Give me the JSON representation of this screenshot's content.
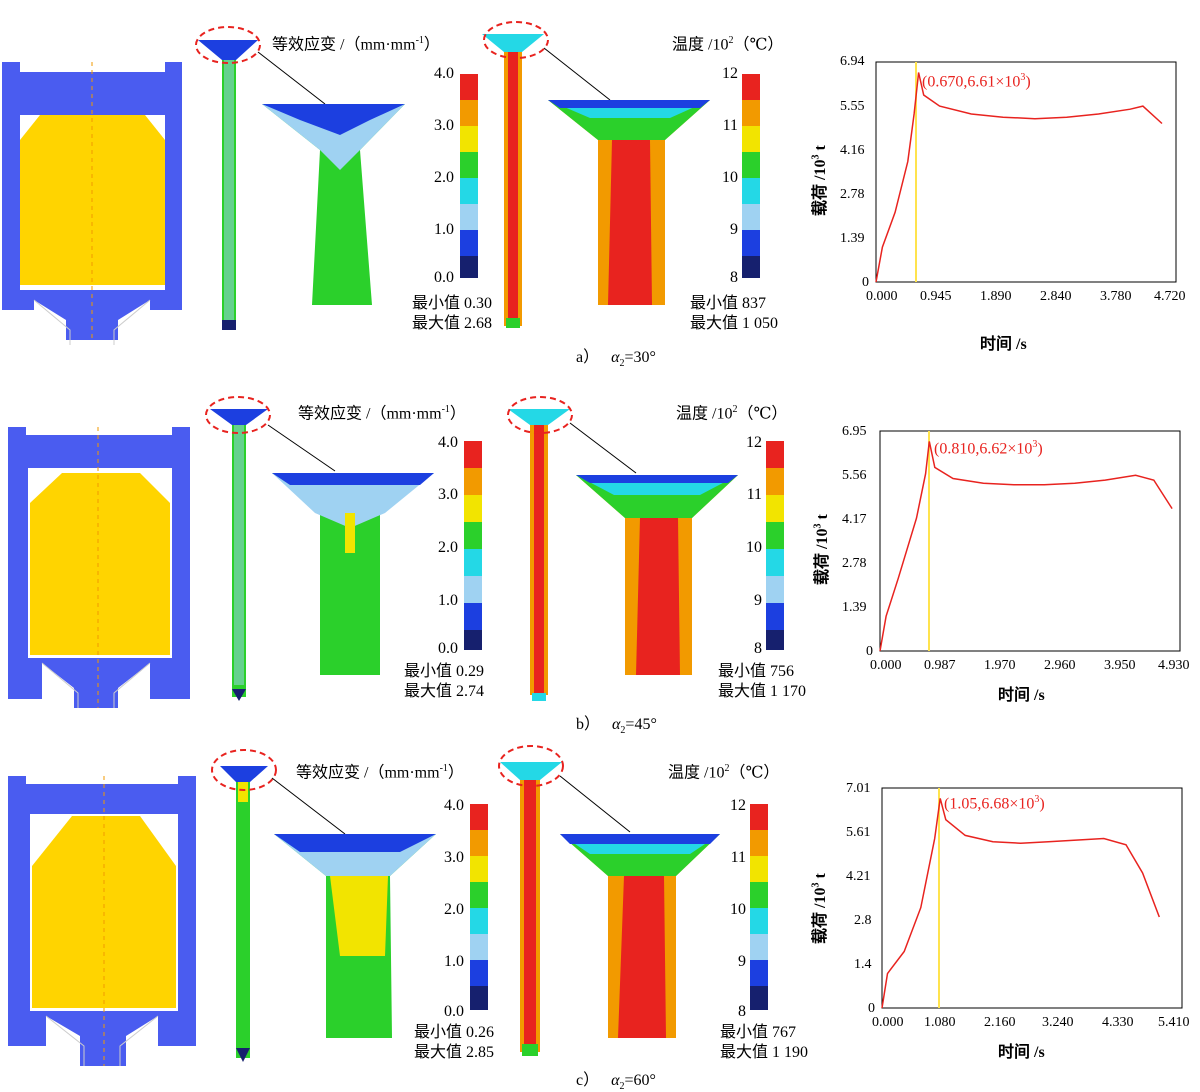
{
  "colors": {
    "die_blue": "#4a5cf0",
    "billet_yellow": "#ffd400",
    "strain_scale": [
      "#16206e",
      "#1c3fe0",
      "#9fd2f2",
      "#24d8e6",
      "#2bd02b",
      "#f2e400",
      "#f29a00",
      "#e8231f"
    ],
    "temp_scale": [
      "#16206e",
      "#1c3fe0",
      "#9fd2f2",
      "#24d8e6",
      "#2bd02b",
      "#f2e400",
      "#f29a00",
      "#e8231f"
    ],
    "curve_red": "#e8231f",
    "marker_yellow": "#ffe34d"
  },
  "labels": {
    "strain_title": "等效应变 /（mm·mm",
    "strain_title_sup": "-1",
    "strain_title_end": "）",
    "temp_title": "温度 /10",
    "temp_title_sup": "2",
    "temp_title_end": "（℃）",
    "ylabel": "载荷 /10",
    "ylabel_sup": "3",
    "ylabel_end": " t",
    "xlabel": "时间 /s",
    "min_prefix": "最小值",
    "max_prefix": "最大值"
  },
  "strain_ticks": [
    "4.0",
    "3.0",
    "2.0",
    "1.0",
    "0.0"
  ],
  "temp_ticks": [
    "12",
    "11",
    "10",
    "9",
    "8"
  ],
  "panels": [
    {
      "caption_prefix": "a）",
      "caption_alpha": "α",
      "caption_sub": "2",
      "caption_value": "=30°",
      "strain_min": "0.30",
      "strain_max": "2.68",
      "temp_min": "837",
      "temp_max": "1 050",
      "peak_label": "(0.670,6.61×10",
      "peak_sup": "3",
      "peak_end": ")",
      "yticks": [
        "6.94",
        "5.55",
        "4.16",
        "2.78",
        "1.39",
        "0"
      ],
      "xticks": [
        "0.000",
        "0.945",
        "1.890",
        "2.840",
        "3.780",
        "4.720"
      ]
    },
    {
      "caption_prefix": "b）",
      "caption_alpha": "α",
      "caption_sub": "2",
      "caption_value": "=45°",
      "strain_min": "0.29",
      "strain_max": "2.74",
      "temp_min": "756",
      "temp_max": "1 170",
      "peak_label": "(0.810,6.62×10",
      "peak_sup": "3",
      "peak_end": ")",
      "yticks": [
        "6.95",
        "5.56",
        "4.17",
        "2.78",
        "1.39",
        "0"
      ],
      "xticks": [
        "0.000",
        "0.987",
        "1.970",
        "2.960",
        "3.950",
        "4.930"
      ]
    },
    {
      "caption_prefix": "c）",
      "caption_alpha": "α",
      "caption_sub": "2",
      "caption_value": "=60°",
      "strain_min": "0.26",
      "strain_max": "2.85",
      "temp_min": "767",
      "temp_max": "1 190",
      "peak_label": "(1.05,6.68×10",
      "peak_sup": "3",
      "peak_end": ")",
      "yticks": [
        "7.01",
        "5.61",
        "4.21",
        "2.8",
        "1.4",
        "0"
      ],
      "xticks": [
        "0.000",
        "1.080",
        "2.160",
        "3.240",
        "4.330",
        "5.410"
      ]
    }
  ],
  "chart_data": [
    {
      "type": "line",
      "xlabel": "时间 /s",
      "ylabel": "载荷 /10³ t",
      "peak": [
        0.67,
        6.61
      ],
      "xlim": [
        0,
        4.72
      ],
      "ylim": [
        0,
        6.94
      ],
      "x": [
        0,
        0.1,
        0.3,
        0.5,
        0.6,
        0.67,
        0.75,
        1.0,
        1.5,
        2.0,
        2.5,
        3.0,
        3.5,
        4.0,
        4.2,
        4.5
      ],
      "y": [
        0,
        1.1,
        2.2,
        3.8,
        5.3,
        6.61,
        5.9,
        5.55,
        5.3,
        5.2,
        5.15,
        5.2,
        5.3,
        5.45,
        5.55,
        5.0
      ]
    },
    {
      "type": "line",
      "xlabel": "时间 /s",
      "ylabel": "载荷 /10³ t",
      "peak": [
        0.81,
        6.62
      ],
      "xlim": [
        0,
        4.93
      ],
      "ylim": [
        0,
        6.95
      ],
      "x": [
        0,
        0.1,
        0.3,
        0.6,
        0.75,
        0.81,
        0.9,
        1.2,
        1.7,
        2.2,
        2.7,
        3.2,
        3.7,
        4.2,
        4.5,
        4.8
      ],
      "y": [
        0,
        1.1,
        2.3,
        4.2,
        5.6,
        6.62,
        5.8,
        5.45,
        5.3,
        5.25,
        5.25,
        5.3,
        5.4,
        5.55,
        5.4,
        4.5
      ]
    },
    {
      "type": "line",
      "xlabel": "时间 /s",
      "ylabel": "载荷 /10³ t",
      "peak": [
        1.05,
        6.68
      ],
      "xlim": [
        0,
        5.41
      ],
      "ylim": [
        0,
        7.01
      ],
      "x": [
        0,
        0.1,
        0.4,
        0.7,
        0.95,
        1.05,
        1.15,
        1.5,
        2.0,
        2.5,
        3.0,
        3.5,
        4.0,
        4.4,
        4.7,
        5.0
      ],
      "y": [
        0,
        1.1,
        1.8,
        3.2,
        5.4,
        6.68,
        6.0,
        5.5,
        5.3,
        5.25,
        5.3,
        5.35,
        5.4,
        5.2,
        4.3,
        2.9
      ]
    }
  ]
}
